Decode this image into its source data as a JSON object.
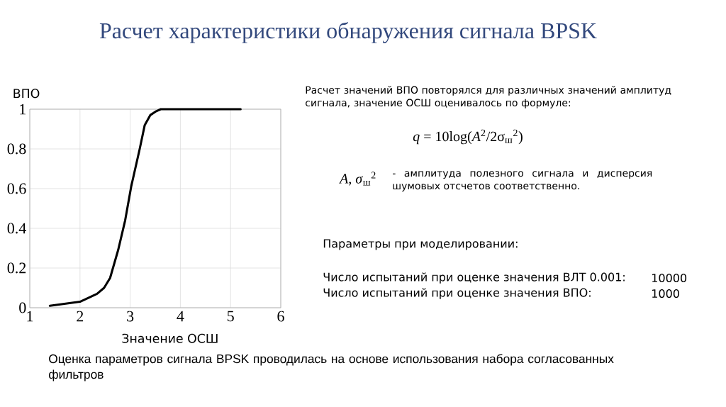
{
  "chart_data": {
    "type": "line",
    "title": "Расчет характеристики обнаружения сигнала BPSK",
    "xlabel": "Значение ОСШ",
    "ylabel": "ВПО",
    "x": [
      1.4,
      2.0,
      2.34,
      2.48,
      2.6,
      2.76,
      2.9,
      3.02,
      3.19,
      3.29,
      3.4,
      3.52,
      3.61,
      5.2
    ],
    "values": [
      0.01,
      0.03,
      0.07,
      0.1,
      0.15,
      0.29,
      0.44,
      0.61,
      0.8,
      0.92,
      0.97,
      0.99,
      1,
      1
    ],
    "color": "#000000",
    "xlim": [
      1,
      6
    ],
    "ylim": [
      0,
      1
    ],
    "xticks": [
      1,
      2,
      3,
      4,
      5,
      6
    ],
    "yticks": [
      0,
      0.2,
      0.4,
      0.6,
      0.8,
      1
    ],
    "grid": true,
    "marker": "none",
    "line_style": "solid",
    "annotations": [
      "Расчет значений ВПО повторялся для различных значений амплитуд сигнала, значение ОСШ оценивалось по формуле:",
      "*q* = 10log(*A*$^{2}$/2σ$_{ш}$$^{2}$)",
      "*A*, *σ*$_{ш}$$^{2}$",
      "- амплитуда полезного сигнала и дисперсия шумовых отсчетов соответственно.",
      "Параметры при моделировании:",
      "Число испытаний при оценке значения ВЛТ 0.001:",
      "10000",
      "Число испытаний при оценке значения ВПО:",
      "1000",
      "Оценка параметров сигнала BPSK проводилась на основе использования набора согласованных фильтров"
    ]
  }
}
